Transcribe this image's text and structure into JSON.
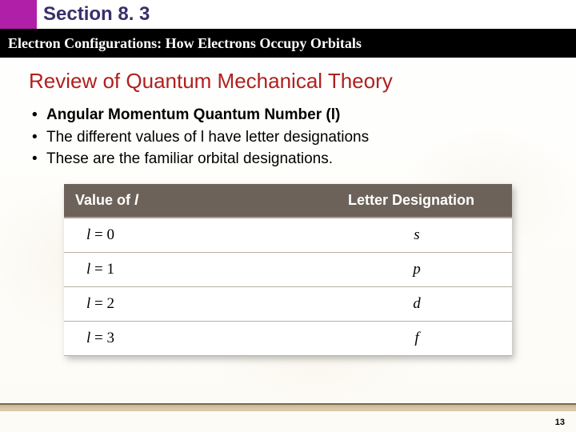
{
  "colors": {
    "accent": "#b01fa8",
    "section_title": "#3a2e6b",
    "heading": "#b01f1f",
    "table_header_bg": "#6d6259",
    "table_header_text": "#ffffff",
    "row_border": "#b8b0a6",
    "footer_band": "#d9c9a8",
    "footer_edge": "#7a6a4a"
  },
  "section": {
    "label": "Section 8. 3",
    "subtitle": "Electron Configurations: How Electrons Occupy Orbitals"
  },
  "heading": "Review of Quantum Mechanical Theory",
  "bullets": [
    {
      "text": "Angular Momentum Quantum Number (l)",
      "bold": true
    },
    {
      "text": "The different values of l have letter designations",
      "bold": false
    },
    {
      "text": "These are the familiar orbital designations.",
      "bold": false
    }
  ],
  "table": {
    "columns": [
      "Value of l",
      "Letter Designation"
    ],
    "rows": [
      {
        "l": "l",
        "eq": "=",
        "val": "0",
        "letter": "s"
      },
      {
        "l": "l",
        "eq": "=",
        "val": "1",
        "letter": "p"
      },
      {
        "l": "l",
        "eq": "=",
        "val": "2",
        "letter": "d"
      },
      {
        "l": "l",
        "eq": "=",
        "val": "3",
        "letter": "f"
      }
    ],
    "header_fontsize": 18,
    "cell_fontsize": 19
  },
  "page_number": "13"
}
